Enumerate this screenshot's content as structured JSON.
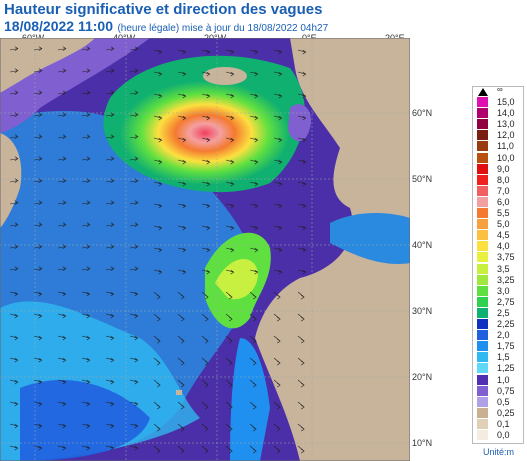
{
  "header": {
    "title": "Hauteur significative et direction des vagues",
    "date": "18/08/2022 11:00",
    "subtitle": "(heure légale) mise à jour du 18/08/2022 04h27"
  },
  "axes": {
    "longitudes": [
      "60°W",
      "40°W",
      "20°W",
      "0°E",
      "20°E"
    ],
    "latitudes": [
      "60°N",
      "50°N",
      "40°N",
      "30°N",
      "20°N",
      "10°N"
    ]
  },
  "legend": {
    "top_marker": "∞",
    "unit": "Unité:m",
    "levels": [
      {
        "label": "15,0",
        "color": "#e010b0"
      },
      {
        "label": "14,0",
        "color": "#b00070"
      },
      {
        "label": "13,0",
        "color": "#900040"
      },
      {
        "label": "12,0",
        "color": "#7a1f10"
      },
      {
        "label": "11,0",
        "color": "#9a3a10"
      },
      {
        "label": "10,0",
        "color": "#b85010"
      },
      {
        "label": "9,0",
        "color": "#e01010"
      },
      {
        "label": "8,0",
        "color": "#f02020"
      },
      {
        "label": "7,0",
        "color": "#f06060"
      },
      {
        "label": "6,0",
        "color": "#f0a0a0"
      },
      {
        "label": "5,5",
        "color": "#f47a30"
      },
      {
        "label": "5,0",
        "color": "#f8a040"
      },
      {
        "label": "4,5",
        "color": "#fcc040"
      },
      {
        "label": "4,0",
        "color": "#fce040"
      },
      {
        "label": "3,75",
        "color": "#e8f040"
      },
      {
        "label": "3,5",
        "color": "#c8f040"
      },
      {
        "label": "3,25",
        "color": "#a0e840"
      },
      {
        "label": "3,0",
        "color": "#60e040"
      },
      {
        "label": "2,75",
        "color": "#30d050"
      },
      {
        "label": "2,5",
        "color": "#10b070"
      },
      {
        "label": "2,25",
        "color": "#1030c0"
      },
      {
        "label": "2,0",
        "color": "#2060e0"
      },
      {
        "label": "1,75",
        "color": "#2090f0"
      },
      {
        "label": "1,5",
        "color": "#30b8f0"
      },
      {
        "label": "1,25",
        "color": "#60d8f8"
      },
      {
        "label": "1,0",
        "color": "#5030b0"
      },
      {
        "label": "0,75",
        "color": "#8060d0"
      },
      {
        "label": "0,5",
        "color": "#b0a0e8"
      },
      {
        "label": "0,25",
        "color": "#c8b090"
      },
      {
        "label": "0,1",
        "color": "#e0d0b8"
      },
      {
        "label": "0,0",
        "color": "#f4ece0"
      }
    ]
  },
  "colors": {
    "land": "#c8b49a",
    "ocean_low": "#4b2fa8",
    "ocean_mid": "#2a8ae0"
  }
}
